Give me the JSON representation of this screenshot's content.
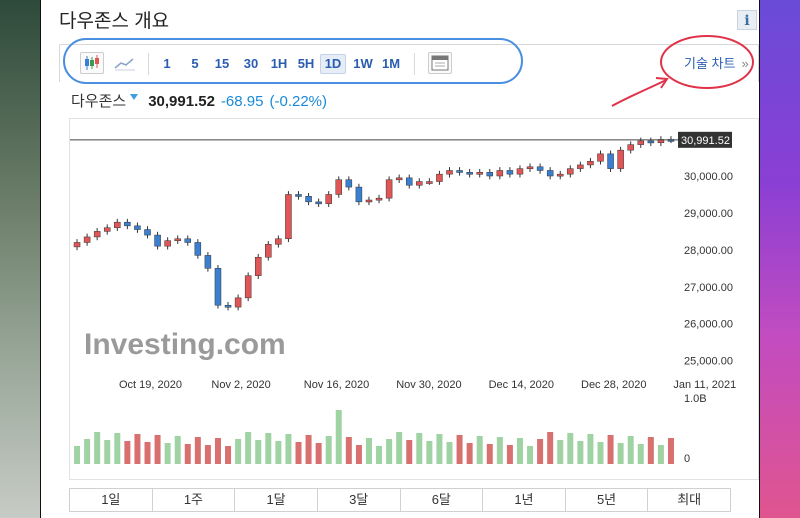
{
  "page": {
    "title": "다우존스 개요",
    "info_label": "i"
  },
  "toolbar": {
    "intervals": [
      "1",
      "5",
      "15",
      "30",
      "1H",
      "5H",
      "1D",
      "1W",
      "1M"
    ],
    "active_interval": "1D",
    "tech_chart_label": "기술 차트",
    "tech_chart_chevron": "»"
  },
  "quote": {
    "name": "다우존스",
    "price": "30,991.52",
    "change": "-68.95",
    "change_pct": "(-0.22%)"
  },
  "periods": [
    "1일",
    "1주",
    "1달",
    "3달",
    "6달",
    "1년",
    "5년",
    "최대"
  ],
  "colors": {
    "up": "#e05555",
    "down": "#3a7fd0",
    "vol_up": "#9fd3a4",
    "vol_down": "#d97070",
    "link": "#2a5db0",
    "annotation": "#e0334a",
    "circle": "#4a8fe0"
  },
  "chart_data": {
    "type": "candlestick",
    "title": "",
    "watermark": "Investing.com",
    "current_price_label": "30,991.52",
    "y_ticks": [
      "30,000.00",
      "29,000.00",
      "28,000.00",
      "27,000.00",
      "26,000.00",
      "25,000.00"
    ],
    "ylim": [
      24800,
      31300
    ],
    "x_ticks": [
      "Oct 19, 2020",
      "Nov 2, 2020",
      "Nov 16, 2020",
      "Nov 30, 2020",
      "Dec 14, 2020",
      "Dec 28, 2020",
      "Jan 11, 2021"
    ],
    "volume_labels": [
      "1.0B",
      "0"
    ],
    "closes": [
      28200,
      28350,
      28500,
      28600,
      28750,
      28650,
      28550,
      28400,
      28100,
      28250,
      28300,
      28200,
      27850,
      27500,
      26500,
      26450,
      26700,
      27300,
      27800,
      28150,
      28300,
      29500,
      29450,
      29300,
      29250,
      29500,
      29900,
      29700,
      29300,
      29350,
      29400,
      29900,
      29950,
      29750,
      29850,
      29850,
      30050,
      30150,
      30100,
      30050,
      30100,
      30000,
      30150,
      30050,
      30200,
      30250,
      30150,
      30000,
      30050,
      30200,
      30300,
      30400,
      30600,
      30200,
      30700,
      30850,
      30950,
      30900,
      30990,
      30980
    ]
  }
}
